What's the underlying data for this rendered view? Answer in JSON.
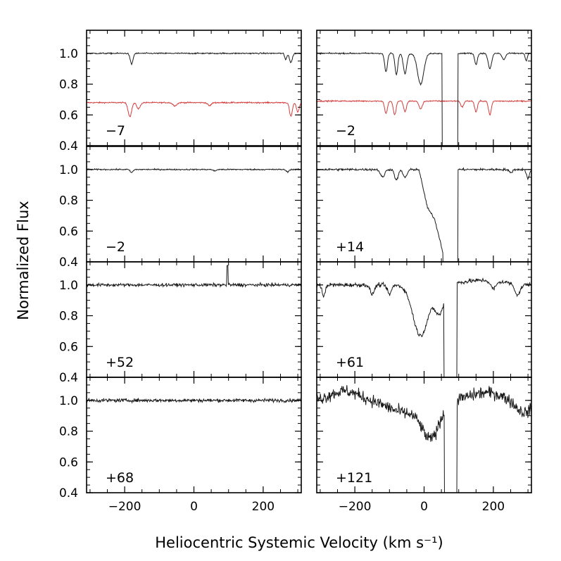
{
  "chart_data": {
    "type": "line",
    "title": "",
    "xlabel": "Heliocentric Systemic Velocity (km s⁻¹)",
    "ylabel": "Normalized Flux",
    "xlim": [
      -310,
      310
    ],
    "ylim": [
      0.4,
      1.15
    ],
    "x_ticks": [
      -200,
      0,
      200
    ],
    "x_tick_labels": [
      "−200",
      "0",
      "200"
    ],
    "y_ticks": [
      0.4,
      0.6,
      0.8,
      1.0
    ],
    "y_tick_labels": [
      "0.4",
      "0.6",
      "0.8",
      "1.0"
    ],
    "grid": false,
    "layout": "4 rows x 2 columns",
    "colors": {
      "spectrum": "#1a1a1a",
      "telluric": "#d43c3c",
      "frame": "#000000"
    },
    "panels": [
      {
        "label": "−7",
        "row": 0,
        "col": 0,
        "noise": 0.004,
        "continuum": 1.0,
        "features": [
          [
            -180,
            0.07,
            4
          ],
          [
            265,
            0.04,
            3
          ],
          [
            280,
            0.06,
            4
          ]
        ],
        "telluric": {
          "offset": 0.68,
          "features": [
            [
              -185,
              0.09,
              5
            ],
            [
              -160,
              0.04,
              5
            ],
            [
              -55,
              0.02,
              6
            ],
            [
              45,
              0.02,
              5
            ],
            [
              280,
              0.09,
              4
            ],
            [
              300,
              0.06,
              4
            ]
          ]
        }
      },
      {
        "label": "−2",
        "row": 0,
        "col": 1,
        "noise": 0.004,
        "continuum": 1.0,
        "features": [
          [
            -110,
            0.12,
            4
          ],
          [
            -80,
            0.14,
            4
          ],
          [
            -55,
            0.13,
            5
          ],
          [
            -10,
            0.2,
            9
          ],
          [
            150,
            0.07,
            4
          ],
          [
            190,
            0.1,
            5
          ],
          [
            230,
            0.04,
            5
          ],
          [
            295,
            0.05,
            3
          ]
        ],
        "trough": [
          52,
          97
        ],
        "telluric": {
          "offset": 0.69,
          "features": [
            [
              -110,
              0.08,
              4
            ],
            [
              -85,
              0.09,
              4
            ],
            [
              -55,
              0.07,
              4
            ],
            [
              -10,
              0.05,
              5
            ],
            [
              110,
              0.04,
              4
            ],
            [
              150,
              0.07,
              4
            ],
            [
              190,
              0.09,
              4
            ]
          ]
        }
      },
      {
        "label": "−2",
        "row": 1,
        "col": 0,
        "noise": 0.004,
        "continuum": 1.0,
        "features": [
          [
            -180,
            0.02,
            4
          ],
          [
            60,
            0.01,
            4
          ],
          [
            270,
            0.015,
            4
          ]
        ]
      },
      {
        "label": "+14",
        "row": 1,
        "col": 1,
        "noise": 0.007,
        "continuum": 1.0,
        "features": [
          [
            -120,
            0.05,
            6
          ],
          [
            -80,
            0.07,
            5
          ],
          [
            -55,
            0.05,
            6
          ],
          [
            250,
            0.02,
            5
          ],
          [
            300,
            0.06,
            4
          ]
        ],
        "ramp": [
          [
            -15,
            0.0
          ],
          [
            0,
            0.15
          ],
          [
            10,
            0.25
          ],
          [
            30,
            0.32
          ],
          [
            45,
            0.45
          ],
          [
            55,
            0.55
          ]
        ],
        "trough": [
          55,
          97
        ]
      },
      {
        "label": "+52",
        "row": 2,
        "col": 0,
        "noise": 0.01,
        "continuum": 1.0,
        "features": [],
        "spike": [
          97,
          0.13
        ]
      },
      {
        "label": "+61",
        "row": 2,
        "col": 1,
        "noise": 0.013,
        "continuum": 1.0,
        "features": [
          [
            -290,
            0.08,
            4
          ],
          [
            -150,
            0.06,
            6
          ],
          [
            -100,
            0.06,
            6
          ],
          [
            200,
            0.05,
            8
          ],
          [
            270,
            0.07,
            8
          ]
        ],
        "broad": [
          [
            -10,
            0.33,
            22
          ],
          [
            45,
            0.18,
            14
          ],
          [
            170,
            -0.03,
            60
          ]
        ],
        "trough": [
          57,
          95
        ]
      },
      {
        "label": "+68",
        "row": 3,
        "col": 0,
        "noise": 0.011,
        "continuum": 1.0,
        "features": []
      },
      {
        "label": "+121",
        "row": 3,
        "col": 1,
        "noise": 0.04,
        "continuum": 1.0,
        "features": [],
        "broad": [
          [
            -230,
            -0.06,
            40
          ],
          [
            -50,
            0.08,
            50
          ],
          [
            20,
            0.22,
            25
          ],
          [
            180,
            -0.05,
            45
          ],
          [
            290,
            0.08,
            25
          ]
        ],
        "trough": [
          58,
          95
        ]
      }
    ]
  }
}
